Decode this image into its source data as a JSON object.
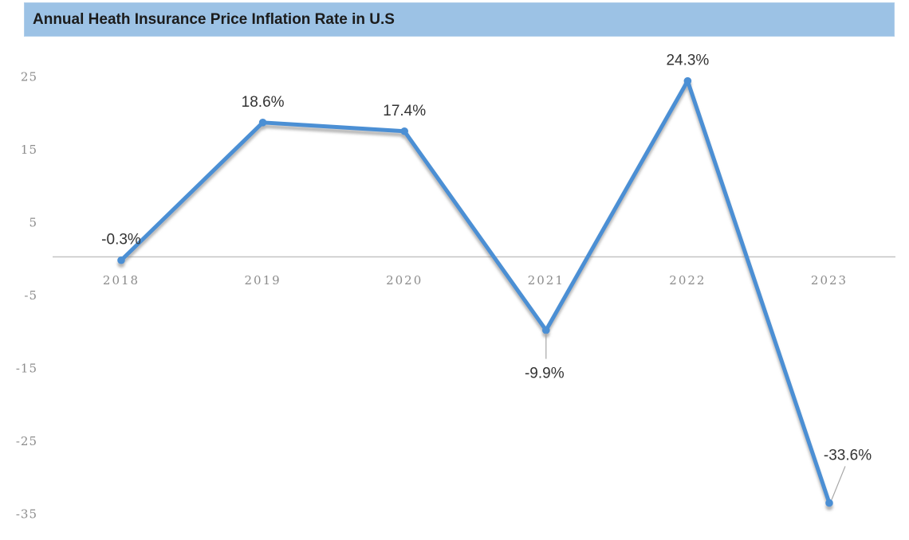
{
  "header": {
    "title": "Annual Heath Insurance Price Inflation Rate in U.S"
  },
  "colors": {
    "title_bar_bg": "#9cc2e5",
    "title_text": "#1b1b1b",
    "line": "#4b8fd4",
    "marker": "#4b8fd4",
    "shadow": "#7a7a7a",
    "axis_line": "#c4c4c4",
    "tick_text": "#8c8c8c",
    "data_label_text": "#333333",
    "leader_line": "#a6a6a6",
    "background": "#ffffff"
  },
  "chart_data": {
    "type": "line",
    "title": "Annual Heath Insurance Price Inflation Rate in U.S",
    "categories": [
      "2018",
      "2019",
      "2020",
      "2021",
      "2022",
      "2023"
    ],
    "values": [
      -0.3,
      18.6,
      17.4,
      -9.9,
      24.3,
      -33.6
    ],
    "data_labels": [
      "-0.3%",
      "18.6%",
      "17.4%",
      "-9.9%",
      "24.3%",
      "-33.6%"
    ],
    "label_positions": [
      "above",
      "above",
      "above",
      "below-leader",
      "above",
      "above-right-leader"
    ],
    "xlabel": "",
    "ylabel": "",
    "y_ticks": [
      25,
      15,
      5,
      -5,
      -15,
      -25,
      -35
    ],
    "ylim": [
      -38,
      28
    ],
    "grid": false,
    "legend": false,
    "marker": "circle",
    "zero_axis": true
  }
}
